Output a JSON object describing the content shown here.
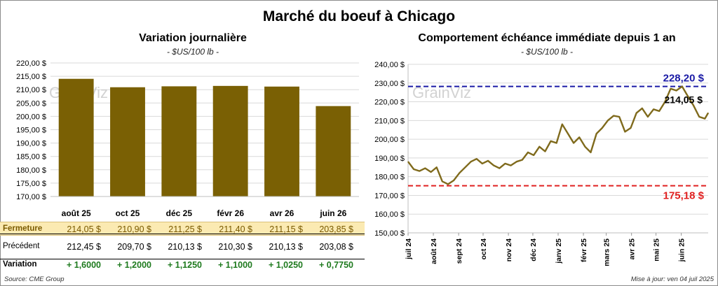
{
  "title": "Marché du boeuf à Chicago",
  "left": {
    "title": "Variation journalière",
    "unit": "- $US/100 lb -"
  },
  "right": {
    "title": "Comportement échéance immédiate depuis 1 an",
    "unit": "- $US/100 lb -",
    "high_label": "228,20 $",
    "low_label": "175,18 $",
    "last_label": "214,05 $"
  },
  "watermark": "GrainViz",
  "table": {
    "close_label": "Fermeture",
    "prev_label": "Précédent",
    "var_label": "Variation",
    "close": [
      "214,05 $",
      "210,90 $",
      "211,25 $",
      "211,40 $",
      "211,15 $",
      "203,85 $"
    ],
    "prev": [
      "212,45 $",
      "209,70 $",
      "210,13 $",
      "210,30 $",
      "210,13 $",
      "203,08 $"
    ],
    "var": [
      "+ 1,6000",
      "+ 1,2000",
      "+ 1,1250",
      "+ 1,1000",
      "+ 1,0250",
      "+ 0,7750"
    ]
  },
  "footer": {
    "source": "Source: CME Group",
    "updated": "Mise à jour: ven 04 juil 2025"
  },
  "colors": {
    "bar": "#7a6004",
    "line": "#7f6a1c",
    "high": "#1a1aa6",
    "low": "#e02020",
    "close_bg": "#fbeab2"
  },
  "chart_data": [
    {
      "type": "bar",
      "title": "Variation journalière",
      "categories": [
        "août 25",
        "oct 25",
        "déc 25",
        "févr 26",
        "avr 26",
        "juin 26"
      ],
      "values": [
        214.05,
        210.9,
        211.25,
        211.4,
        211.15,
        203.85
      ],
      "ylim": [
        170,
        220
      ],
      "yticks": [
        170,
        175,
        180,
        185,
        190,
        195,
        200,
        205,
        210,
        215,
        220
      ],
      "ytick_labels": [
        "170,00 $",
        "175,00 $",
        "180,00 $",
        "185,00 $",
        "190,00 $",
        "195,00 $",
        "200,00 $",
        "205,00 $",
        "210,00 $",
        "215,00 $",
        "220,00 $"
      ]
    },
    {
      "type": "line",
      "title": "Comportement échéance immédiate depuis 1 an",
      "ylim": [
        150,
        240
      ],
      "yticks": [
        150,
        160,
        170,
        180,
        190,
        200,
        210,
        220,
        230,
        240
      ],
      "ytick_labels": [
        "150,00 $",
        "160,00 $",
        "170,00 $",
        "180,00 $",
        "190,00 $",
        "200,00 $",
        "210,00 $",
        "220,00 $",
        "230,00 $",
        "240,00 $"
      ],
      "xticks": [
        "juil 24",
        "août 24",
        "sept 24",
        "oct 24",
        "nov 24",
        "déc 24",
        "janv 25",
        "févr 25",
        "mars 25",
        "avr 25",
        "mai 25",
        "juin 25"
      ],
      "high": 228.2,
      "low": 175.18,
      "last": 214.05,
      "x": [
        "2024-07-01",
        "2024-07-08",
        "2024-07-15",
        "2024-07-22",
        "2024-07-29",
        "2024-08-05",
        "2024-08-12",
        "2024-08-19",
        "2024-08-26",
        "2024-09-02",
        "2024-09-09",
        "2024-09-16",
        "2024-09-23",
        "2024-09-30",
        "2024-10-07",
        "2024-10-14",
        "2024-10-21",
        "2024-10-28",
        "2024-11-04",
        "2024-11-11",
        "2024-11-18",
        "2024-11-25",
        "2024-12-02",
        "2024-12-09",
        "2024-12-16",
        "2024-12-23",
        "2024-12-30",
        "2025-01-06",
        "2025-01-13",
        "2025-01-20",
        "2025-01-27",
        "2025-02-03",
        "2025-02-10",
        "2025-02-17",
        "2025-02-24",
        "2025-03-03",
        "2025-03-10",
        "2025-03-17",
        "2025-03-24",
        "2025-03-31",
        "2025-04-07",
        "2025-04-14",
        "2025-04-21",
        "2025-04-28",
        "2025-05-05",
        "2025-05-12",
        "2025-05-19",
        "2025-05-26",
        "2025-06-02",
        "2025-06-09",
        "2025-06-16",
        "2025-06-23",
        "2025-06-30",
        "2025-07-04"
      ],
      "y": [
        188.0,
        184.0,
        183.0,
        184.5,
        182.5,
        185.0,
        177.5,
        176.0,
        178.0,
        182.0,
        185.0,
        188.0,
        189.5,
        187.0,
        188.5,
        186.0,
        184.5,
        187.0,
        186.0,
        188.0,
        189.0,
        193.0,
        191.5,
        196.0,
        193.5,
        199.0,
        198.0,
        208.0,
        203.0,
        198.0,
        201.0,
        196.0,
        193.0,
        203.0,
        206.0,
        210.0,
        212.5,
        212.0,
        204.0,
        206.0,
        214.0,
        216.5,
        212.0,
        216.0,
        215.0,
        220.0,
        227.0,
        226.0,
        228.2,
        223.0,
        218.0,
        212.0,
        211.0,
        214.05
      ]
    }
  ]
}
